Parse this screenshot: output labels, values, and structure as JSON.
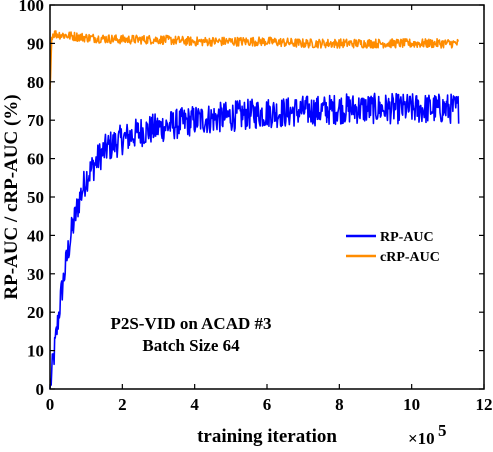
{
  "chart_data": {
    "type": "line",
    "xlabel": "training iteration",
    "ylabel": "RP-AUC / cRP-AUC (%)",
    "x_exponent_label": "×10",
    "x_exponent_power": "5",
    "xlim": [
      0,
      12
    ],
    "ylim": [
      0,
      100
    ],
    "xticks": [
      0,
      2,
      4,
      6,
      8,
      10,
      12
    ],
    "yticks": [
      0,
      10,
      20,
      30,
      40,
      50,
      60,
      70,
      80,
      90,
      100
    ],
    "grid": false,
    "legend_position": "center-right",
    "annotation": [
      "P2S-VID on ACAD #3",
      "Batch Size 64"
    ],
    "series": [
      {
        "name": "RP-AUC",
        "color": "#0000ff",
        "x": [
          0,
          0.1,
          0.2,
          0.3,
          0.4,
          0.5,
          0.6,
          0.7,
          0.8,
          0.9,
          1.0,
          1.2,
          1.4,
          1.6,
          1.8,
          2.0,
          2.5,
          3.0,
          3.5,
          4.0,
          4.5,
          5.0,
          5.5,
          6.0,
          6.5,
          7.0,
          7.5,
          8.0,
          8.5,
          9.0,
          9.5,
          10.0,
          10.5,
          11.0,
          11.3
        ],
        "values": [
          0,
          8,
          16,
          24,
          30,
          36,
          41,
          45,
          49,
          52,
          55,
          58,
          61,
          63,
          64,
          65,
          67,
          68,
          69,
          70,
          70.5,
          71,
          71.5,
          72,
          72,
          72.5,
          72.5,
          73,
          73,
          73,
          73,
          73,
          73,
          73,
          73
        ],
        "noise_amplitude": 4
      },
      {
        "name": "cRP-AUC",
        "color": "#ff8c00",
        "x": [
          0,
          0.05,
          0.1,
          0.5,
          1.0,
          2.0,
          3.0,
          4.0,
          5.0,
          6.0,
          7.0,
          8.0,
          9.0,
          10.0,
          11.0,
          11.3
        ],
        "values": [
          78,
          92,
          92.5,
          92,
          91.5,
          91,
          91,
          90.5,
          90.5,
          90.5,
          90,
          90,
          90,
          90,
          90,
          90
        ],
        "noise_amplitude": 1.2
      }
    ]
  }
}
